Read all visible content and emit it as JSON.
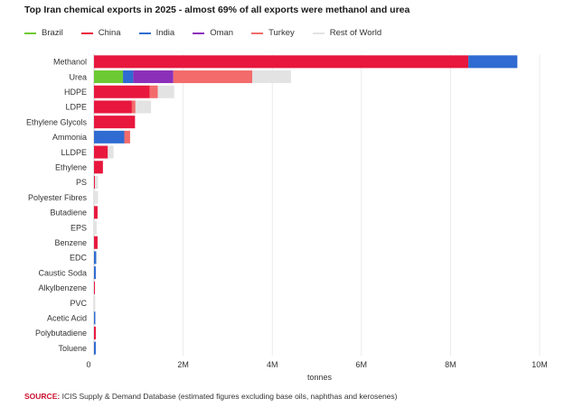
{
  "title": "Top Iran chemical exports in 2025 - almost 69% of all exports were methanol and urea",
  "source_label": "SOURCE:",
  "source_text": "ICIS Supply & Demand Database (estimated figures excluding base oils, naphthas and kerosenes)",
  "chart_data": {
    "type": "bar",
    "orientation": "horizontal",
    "stacked": true,
    "title": "Top Iran chemical exports in 2025 - almost 69% of all exports were methanol and urea",
    "xlabel": "tonnes",
    "ylabel": "",
    "xlim": [
      0,
      10000000
    ],
    "xticks": [
      0,
      2000000,
      4000000,
      6000000,
      8000000,
      10000000
    ],
    "xtick_labels": [
      "0",
      "2M",
      "4M",
      "6M",
      "8M",
      "10M"
    ],
    "grid": true,
    "legend_position": "top-left",
    "categories": [
      "Methanol",
      "Urea",
      "HDPE",
      "LDPE",
      "Ethylene Glycols",
      "Ammonia",
      "LLDPE",
      "Ethylene",
      "PS",
      "Polyester Fibres",
      "Butadiene",
      "EPS",
      "Benzene",
      "EDC",
      "Caustic Soda",
      "Alkylbenzene",
      "PVC",
      "Acetic Acid",
      "Polybutadiene",
      "Toluene"
    ],
    "series": [
      {
        "name": "Brazil",
        "color": "#6dc933",
        "values": [
          0,
          650000,
          0,
          0,
          0,
          0,
          0,
          0,
          0,
          0,
          0,
          0,
          0,
          0,
          0,
          0,
          0,
          0,
          0,
          0
        ]
      },
      {
        "name": "China",
        "color": "#e8173d",
        "values": [
          8400000,
          0,
          1250000,
          850000,
          920000,
          0,
          310000,
          200000,
          20000,
          0,
          80000,
          0,
          80000,
          0,
          0,
          20000,
          0,
          0,
          40000,
          0
        ]
      },
      {
        "name": "India",
        "color": "#2f6bd1",
        "values": [
          1100000,
          230000,
          0,
          0,
          0,
          680000,
          0,
          0,
          0,
          0,
          0,
          0,
          0,
          50000,
          40000,
          0,
          0,
          30000,
          0,
          40000
        ]
      },
      {
        "name": "Oman",
        "color": "#8b2fb8",
        "values": [
          0,
          900000,
          0,
          0,
          0,
          0,
          0,
          0,
          0,
          0,
          0,
          0,
          0,
          0,
          0,
          0,
          0,
          0,
          0,
          0
        ]
      },
      {
        "name": "Turkey",
        "color": "#f36b6b",
        "values": [
          0,
          1770000,
          180000,
          80000,
          0,
          130000,
          0,
          0,
          0,
          0,
          0,
          0,
          0,
          0,
          0,
          0,
          0,
          0,
          0,
          0
        ]
      },
      {
        "name": "Rest of World",
        "color": "#e3e3e3",
        "values": [
          0,
          870000,
          370000,
          350000,
          0,
          0,
          130000,
          0,
          70000,
          90000,
          0,
          60000,
          0,
          0,
          0,
          0,
          30000,
          0,
          0,
          0
        ]
      }
    ]
  }
}
